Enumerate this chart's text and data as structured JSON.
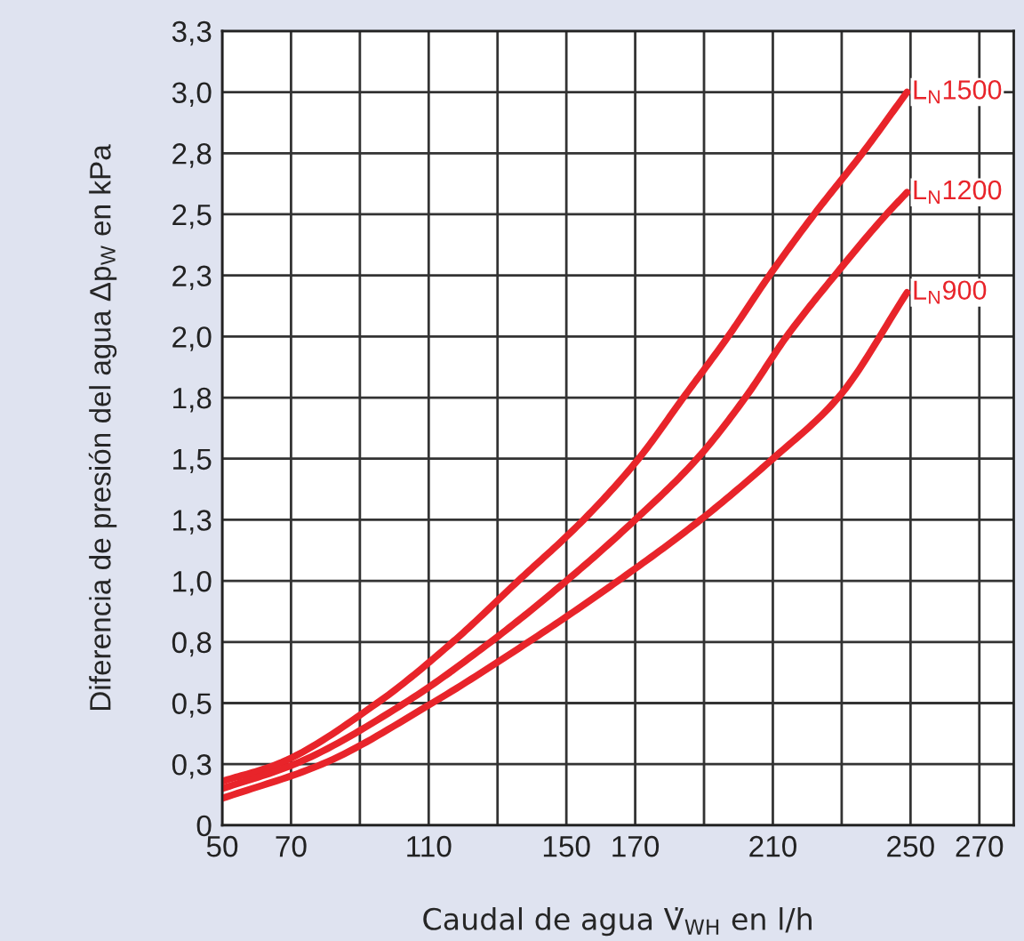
{
  "chart_data": {
    "type": "line",
    "xlabel": "Caudal de agua V̇$_{WH}$ en l/h",
    "ylabel": "Diferencia de presión del agua Δp$_{W}$ en kPa",
    "xlim": [
      50,
      280
    ],
    "xticks": [
      50,
      70,
      {
        "value": 90,
        "label": null
      },
      110,
      {
        "value": 130,
        "label": null
      },
      150,
      170,
      {
        "value": 190,
        "label": null
      },
      210,
      {
        "value": 230,
        "label": null
      },
      250,
      270
    ],
    "ylim": [
      0,
      3.25
    ],
    "yticks": [
      0,
      {
        "value": 0.25,
        "label": "0,3"
      },
      {
        "value": 0.5,
        "label": "0,5"
      },
      {
        "value": 0.75,
        "label": "0,8"
      },
      {
        "value": 1.0,
        "label": "1,0"
      },
      {
        "value": 1.25,
        "label": "1,3"
      },
      {
        "value": 1.5,
        "label": "1,5"
      },
      {
        "value": 1.75,
        "label": "1,8"
      },
      {
        "value": 2.0,
        "label": "2,0"
      },
      {
        "value": 2.25,
        "label": "2,3"
      },
      {
        "value": 2.5,
        "label": "2,5"
      },
      {
        "value": 2.75,
        "label": "2,8"
      },
      {
        "value": 3.0,
        "label": "3,0"
      },
      {
        "value": 3.25,
        "label": "3,3"
      }
    ],
    "grid": true,
    "legend": false,
    "marker": "none",
    "line_style": "solid",
    "series": [
      {
        "name": "L$_{N}$1500",
        "color": "#e8242a",
        "x": [
          50,
          66,
          95,
          117,
          136,
          155,
          171,
          184,
          197,
          209,
          222,
          236,
          249
        ],
        "values": [
          0.18,
          0.25,
          0.5,
          0.75,
          1.0,
          1.25,
          1.5,
          1.75,
          2.0,
          2.25,
          2.5,
          2.75,
          3.0
        ]
      },
      {
        "name": "L$_{N}$1200",
        "color": "#e8242a",
        "x": [
          50,
          71,
          103,
          128,
          150,
          170,
          188,
          202,
          214,
          228,
          243,
          249
        ],
        "values": [
          0.15,
          0.25,
          0.5,
          0.75,
          1.0,
          1.25,
          1.5,
          1.75,
          2.0,
          2.25,
          2.5,
          2.59
        ]
      },
      {
        "name": "L$_{N}$900",
        "color": "#e8242a",
        "x": [
          50,
          79,
          111,
          139,
          165,
          189,
          210,
          229,
          249
        ],
        "values": [
          0.11,
          0.25,
          0.5,
          0.75,
          1.0,
          1.25,
          1.5,
          1.75,
          2.18
        ]
      }
    ]
  }
}
